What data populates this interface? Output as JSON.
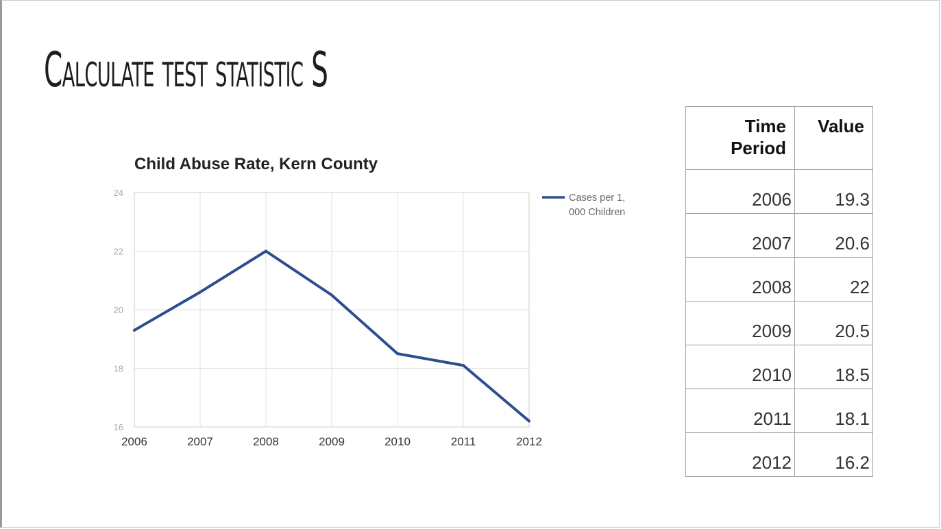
{
  "slide": {
    "title": "Calculate test statistic S"
  },
  "chart_data": {
    "type": "line",
    "title": "Child Abuse Rate, Kern County",
    "xlabel": "",
    "ylabel": "",
    "x": [
      "2006",
      "2007",
      "2008",
      "2009",
      "2010",
      "2011",
      "2012"
    ],
    "ylim": [
      16,
      24
    ],
    "yticks": [
      "16",
      "18",
      "20",
      "22",
      "24"
    ],
    "grid": true,
    "legend_position": "right",
    "series": [
      {
        "name_line1": "Cases per 1,",
        "name_line2": "000 Children",
        "color": "#2b4f8e",
        "values": [
          19.3,
          20.6,
          22.0,
          20.5,
          18.5,
          18.1,
          16.2
        ]
      }
    ]
  },
  "table": {
    "headers": {
      "time_line1": "Time",
      "time_line2": "Period",
      "value": "Value"
    },
    "rows": [
      {
        "period": "2006",
        "value": "19.3"
      },
      {
        "period": "2007",
        "value": "20.6"
      },
      {
        "period": "2008",
        "value": "22"
      },
      {
        "period": "2009",
        "value": "20.5"
      },
      {
        "period": "2010",
        "value": "18.5"
      },
      {
        "period": "2011",
        "value": "18.1"
      },
      {
        "period": "2012",
        "value": "16.2"
      }
    ]
  }
}
